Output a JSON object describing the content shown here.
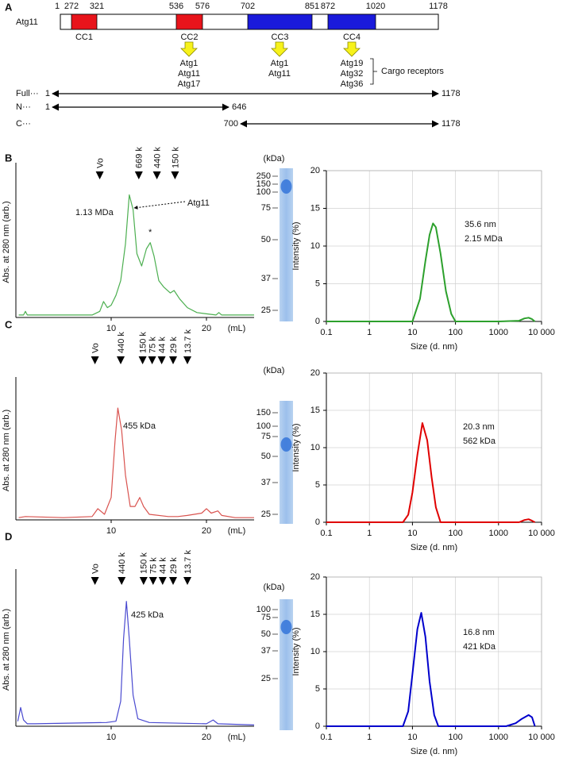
{
  "panel_labels": [
    "A",
    "B",
    "C",
    "D"
  ],
  "panel_a": {
    "protein": "Atg11",
    "length_start": 1,
    "length_end": 1178,
    "domains": [
      {
        "name": "CC1",
        "start": 272,
        "end": 321,
        "color": "#e8141b"
      },
      {
        "name": "CC2",
        "start": 536,
        "end": 576,
        "color": "#e8141b"
      },
      {
        "name": "CC3",
        "start": 702,
        "end": 851,
        "color": "#1a1adb"
      },
      {
        "name": "CC4",
        "start": 872,
        "end": 1020,
        "color": "#1a1adb"
      }
    ],
    "partners": [
      [
        "Atg1",
        "Atg11",
        "Atg17"
      ],
      [
        "Atg1",
        "Atg11"
      ],
      [
        "Atg19",
        "Atg32",
        "Atg36"
      ]
    ],
    "cargo_note": "Cargo receptors",
    "constructs": [
      {
        "name": "Full···",
        "start": 1,
        "end": 1178
      },
      {
        "name": "N···",
        "start": 1,
        "end": 646
      },
      {
        "name": "C···",
        "start": 700,
        "end": 1178
      }
    ]
  },
  "gels": [
    {
      "unit": "(kDa)",
      "markers": [
        250,
        150,
        100,
        75,
        50,
        37,
        25
      ]
    },
    {
      "unit": "(kDa)",
      "markers": [
        150,
        100,
        75,
        50,
        37,
        25
      ]
    },
    {
      "unit": "(kDa)",
      "markers": [
        100,
        75,
        50,
        37,
        25
      ]
    }
  ],
  "chart_data": [
    {
      "type": "line",
      "color": "#4caf50",
      "ylabel": "Abs. at 280 nm (arb.)",
      "xlabel": "(mL)",
      "xlim": [
        0,
        25
      ],
      "xticks": [
        10,
        20
      ],
      "ylim": [
        0,
        1.1
      ],
      "standards": [
        {
          "label": "Vo",
          "x": 8.8
        },
        {
          "label": "669 k",
          "x": 12.9
        },
        {
          "label": "440 k",
          "x": 14.8
        },
        {
          "label": "150 k",
          "x": 16.7
        }
      ],
      "annotations": [
        "1.13 MDa",
        "Atg11",
        "*"
      ],
      "x": [
        0.3,
        0.8,
        1.0,
        1.2,
        2,
        5,
        8,
        8.8,
        9.2,
        9.6,
        10,
        10.5,
        11,
        11.5,
        11.9,
        12.3,
        12.7,
        13.2,
        13.7,
        14.1,
        14.5,
        15,
        15.5,
        16.2,
        16.6,
        17.2,
        18,
        19,
        20,
        21,
        21.3,
        21.6,
        23,
        25
      ],
      "values": [
        0.02,
        0.02,
        0.05,
        0.02,
        0.02,
        0.02,
        0.02,
        0.05,
        0.13,
        0.08,
        0.1,
        0.18,
        0.3,
        0.6,
        1.0,
        0.88,
        0.52,
        0.42,
        0.56,
        0.61,
        0.5,
        0.3,
        0.25,
        0.2,
        0.22,
        0.15,
        0.08,
        0.04,
        0.03,
        0.02,
        0.04,
        0.02,
        0.02,
        0.02
      ]
    },
    {
      "type": "line",
      "log_x": true,
      "color": "#2ca02c",
      "ylabel": "Intensity (%)",
      "xlabel": "Size (d. nm)",
      "grid": true,
      "xlim": [
        0.1,
        10000
      ],
      "xticks": [
        0.1,
        1,
        10,
        100,
        1000,
        {
          "value": 10000,
          "label": "10 000"
        }
      ],
      "ylim": [
        0,
        20
      ],
      "yticks": [
        0,
        5,
        10,
        15,
        20
      ],
      "annotations": [
        "35.6 nm",
        "2.15 MDa"
      ],
      "x": [
        0.1,
        10,
        15,
        20,
        25,
        30,
        35,
        45,
        60,
        80,
        100,
        1000,
        3000,
        4000,
        5000,
        6000,
        7000
      ],
      "values": [
        0,
        0,
        3,
        8,
        11.5,
        13,
        12.5,
        9,
        4,
        1,
        0,
        0,
        0.1,
        0.4,
        0.5,
        0.3,
        0
      ]
    },
    {
      "type": "line",
      "color": "#d9534f",
      "ylabel": "Abs. at 280 nm (arb.)",
      "xlabel": "(mL)",
      "xlim": [
        0,
        25
      ],
      "xticks": [
        10,
        20
      ],
      "ylim": [
        0,
        1.1
      ],
      "standards": [
        {
          "label": "Vo",
          "x": 8.3
        },
        {
          "label": "440 k",
          "x": 11
        },
        {
          "label": "150 k",
          "x": 13.3
        },
        {
          "label": "75 k",
          "x": 14.3
        },
        {
          "label": "44 k",
          "x": 15.3
        },
        {
          "label": "29 k",
          "x": 16.5
        },
        {
          "label": "13.7 k",
          "x": 18
        }
      ],
      "annotations": [
        "455 kDa"
      ],
      "x": [
        0.3,
        1,
        5,
        8,
        8.6,
        9.3,
        10,
        10.4,
        10.7,
        11.1,
        11.5,
        12,
        12.5,
        13,
        13.4,
        14,
        16,
        17,
        18,
        19.5,
        20,
        20.5,
        21.2,
        21.6,
        23,
        25
      ],
      "values": [
        0.02,
        0.03,
        0.02,
        0.03,
        0.1,
        0.05,
        0.2,
        0.7,
        1.0,
        0.8,
        0.4,
        0.12,
        0.12,
        0.2,
        0.12,
        0.05,
        0.03,
        0.03,
        0.04,
        0.06,
        0.1,
        0.06,
        0.08,
        0.04,
        0.02,
        0.02
      ]
    },
    {
      "type": "line",
      "log_x": true,
      "color": "#e00000",
      "ylabel": "Intensity (%)",
      "xlabel": "Size (d. nm)",
      "grid": true,
      "xlim": [
        0.1,
        10000
      ],
      "xticks": [
        0.1,
        1,
        10,
        100,
        1000,
        {
          "value": 10000,
          "label": "10 000"
        }
      ],
      "ylim": [
        0,
        20
      ],
      "yticks": [
        0,
        5,
        10,
        15,
        20
      ],
      "annotations": [
        "20.3 nm",
        "562 kDa"
      ],
      "x": [
        0.1,
        6,
        8,
        10,
        13,
        17,
        22,
        28,
        35,
        45,
        3000,
        4000,
        5000,
        6000,
        7000
      ],
      "values": [
        0,
        0,
        1,
        4,
        9,
        13.3,
        11,
        6,
        2,
        0,
        0,
        0.3,
        0.4,
        0.2,
        0
      ]
    },
    {
      "type": "line",
      "color": "#4a4ad0",
      "ylabel": "Abs. at 280 nm (arb.)",
      "xlabel": "(mL)",
      "xlim": [
        0,
        25
      ],
      "xticks": [
        10,
        20
      ],
      "ylim": [
        0,
        1.1
      ],
      "standards": [
        {
          "label": "Vo",
          "x": 8.3
        },
        {
          "label": "440 k",
          "x": 11.1
        },
        {
          "label": "150 k",
          "x": 13.4
        },
        {
          "label": "75 k",
          "x": 14.4
        },
        {
          "label": "44 k",
          "x": 15.4
        },
        {
          "label": "29 k",
          "x": 16.5
        },
        {
          "label": "13.7 k",
          "x": 18
        }
      ],
      "annotations": [
        "425 kDa"
      ],
      "x": [
        0.2,
        0.5,
        0.8,
        1.2,
        2,
        9.5,
        10.5,
        11,
        11.3,
        11.6,
        11.9,
        12.3,
        12.8,
        14,
        20,
        20.7,
        21.2,
        25
      ],
      "values": [
        0.04,
        0.15,
        0.05,
        0.02,
        0.02,
        0.03,
        0.04,
        0.2,
        0.7,
        1.0,
        0.7,
        0.25,
        0.06,
        0.03,
        0.02,
        0.05,
        0.02,
        0.01
      ]
    },
    {
      "type": "line",
      "log_x": true,
      "color": "#0000cc",
      "ylabel": "Intensity (%)",
      "xlabel": "Size (d. nm)",
      "grid": true,
      "xlim": [
        0.1,
        10000
      ],
      "xticks": [
        0.1,
        1,
        10,
        100,
        1000,
        {
          "value": 10000,
          "label": "10 000"
        }
      ],
      "ylim": [
        0,
        20
      ],
      "yticks": [
        0,
        5,
        10,
        15,
        20
      ],
      "annotations": [
        "16.8 nm",
        "421 kDa"
      ],
      "x": [
        0.1,
        6,
        8,
        10,
        13,
        16,
        20,
        25,
        32,
        40,
        1500,
        2500,
        3500,
        5000,
        6000,
        7000
      ],
      "values": [
        0,
        0,
        2,
        7,
        13,
        15.2,
        12,
        6,
        1.5,
        0,
        0,
        0.4,
        1.0,
        1.5,
        1.2,
        0
      ]
    }
  ]
}
